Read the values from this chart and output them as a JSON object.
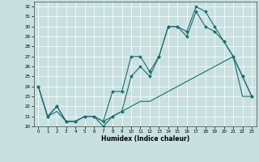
{
  "xlabel": "Humidex (Indice chaleur)",
  "xlim": [
    -0.5,
    23.5
  ],
  "ylim": [
    20,
    32.5
  ],
  "xticks": [
    0,
    1,
    2,
    3,
    4,
    5,
    6,
    7,
    8,
    9,
    10,
    11,
    12,
    13,
    14,
    15,
    16,
    17,
    18,
    19,
    20,
    21,
    22,
    23
  ],
  "yticks": [
    20,
    21,
    22,
    23,
    24,
    25,
    26,
    27,
    28,
    29,
    30,
    31,
    32
  ],
  "bg_color": "#c8e0e0",
  "grid_color": "#ffffff",
  "line_color": "#1a6e6e",
  "line1_x": [
    0,
    1,
    2,
    3,
    4,
    5,
    6,
    7,
    8,
    9,
    10,
    11,
    12,
    13,
    14,
    15,
    16,
    17,
    18,
    19,
    20,
    21,
    22,
    23
  ],
  "line1_y": [
    24,
    21,
    22,
    20.5,
    20.5,
    21,
    21,
    20.5,
    23.5,
    23.5,
    27,
    27,
    25.5,
    27,
    30,
    30,
    29.5,
    32,
    31.5,
    30,
    28.5,
    27,
    25,
    23
  ],
  "line2_x": [
    0,
    1,
    2,
    3,
    4,
    5,
    6,
    7,
    8,
    9,
    10,
    11,
    12,
    13,
    14,
    15,
    16,
    17,
    18,
    19,
    20,
    21,
    22,
    23
  ],
  "line2_y": [
    24,
    21,
    22,
    20.5,
    20.5,
    21,
    21,
    20,
    21,
    21.5,
    25,
    26,
    25,
    27,
    30,
    30,
    29,
    31.5,
    30,
    29.5,
    28.5,
    27,
    25,
    23
  ],
  "line3_x": [
    0,
    1,
    2,
    3,
    4,
    5,
    6,
    7,
    8,
    9,
    10,
    11,
    12,
    13,
    14,
    15,
    16,
    17,
    18,
    19,
    20,
    21,
    22,
    23
  ],
  "line3_y": [
    24,
    21,
    21.5,
    20.5,
    20.5,
    21,
    21,
    20.5,
    21,
    21.5,
    22,
    22.5,
    22.5,
    23,
    23.5,
    24,
    24.5,
    25,
    25.5,
    26,
    26.5,
    27,
    23,
    23
  ]
}
